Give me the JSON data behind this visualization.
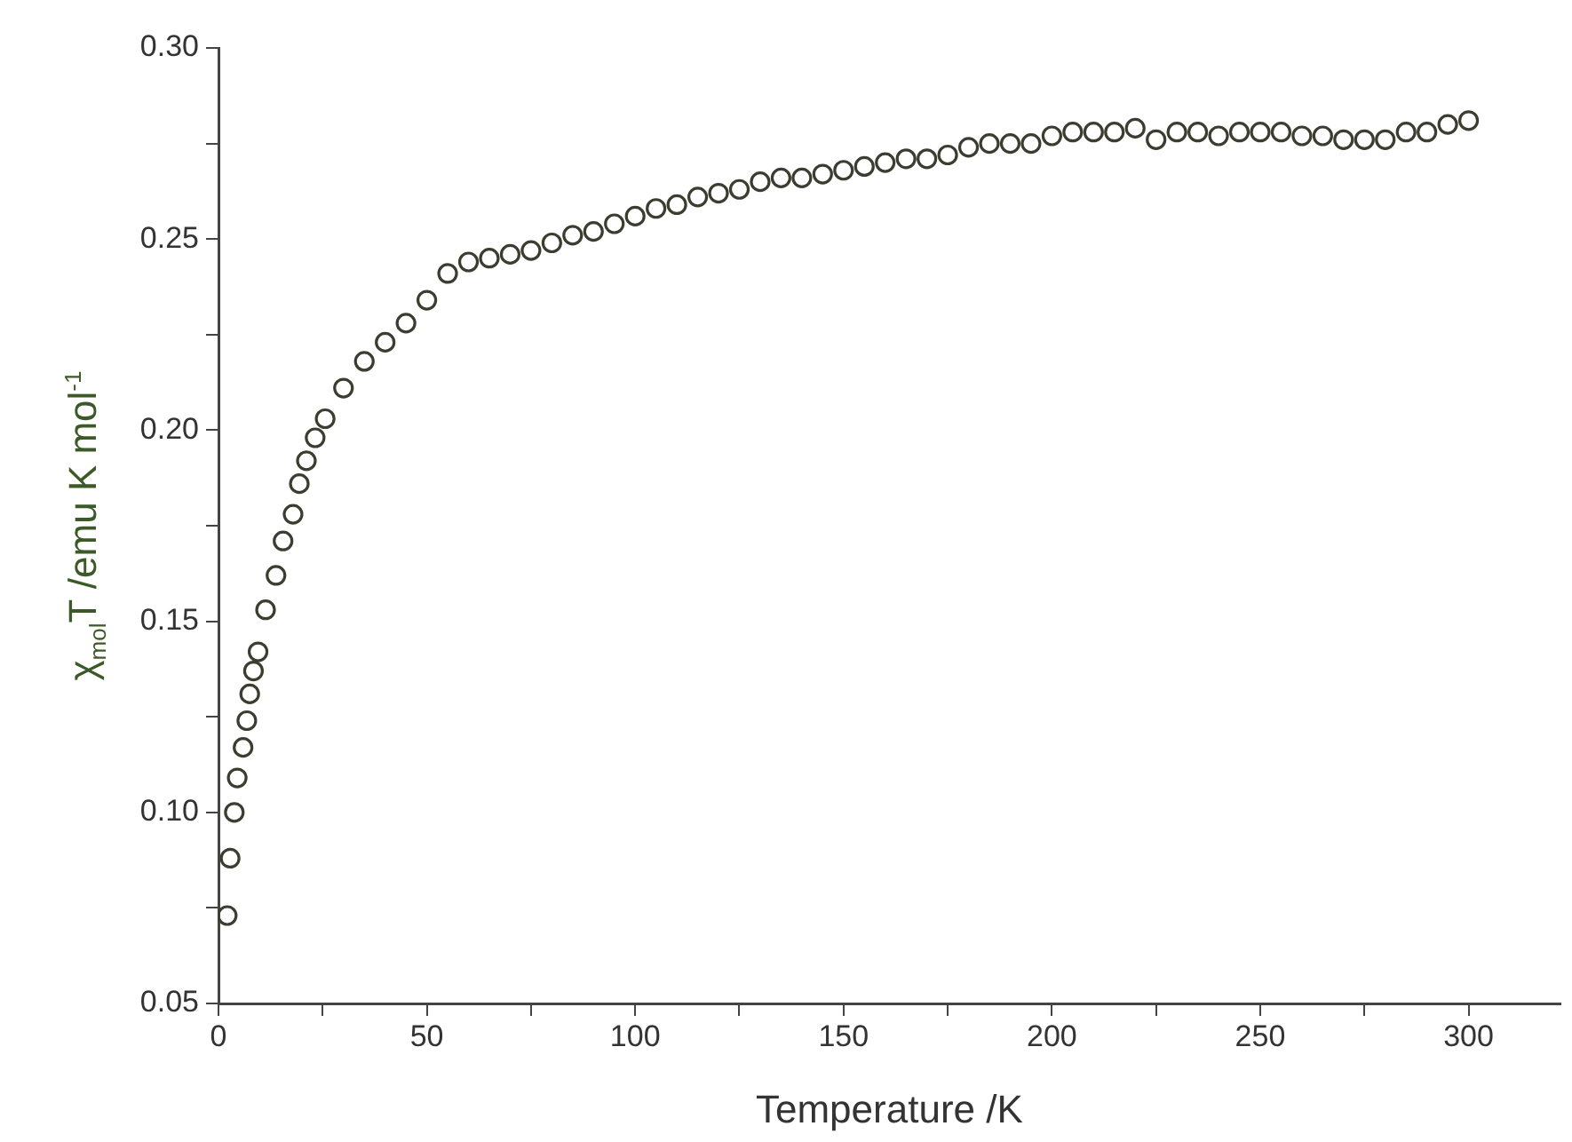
{
  "chart_data": {
    "type": "scatter",
    "xlabel": "Temperature /K",
    "ylabel": "χ$_{mol}$T /emu K mol$^{-1}$",
    "marker": "circle",
    "color": "#3c3c30",
    "x": [
      2.1,
      2.8,
      3.8,
      4.5,
      5.9,
      6.8,
      7.5,
      8.4,
      9.5,
      11.3,
      13.8,
      15.5,
      17.9,
      19.4,
      21.1,
      23.2,
      25.6,
      30,
      35,
      40,
      45,
      50,
      55,
      60,
      65,
      70,
      75,
      80,
      85,
      90,
      95,
      100,
      105,
      110,
      115,
      120,
      125,
      130,
      135,
      140,
      145,
      150,
      155,
      160,
      165,
      170,
      175,
      180,
      185,
      190,
      195,
      200,
      205,
      210,
      215,
      220,
      225,
      230,
      235,
      240,
      245,
      250,
      255,
      260,
      265,
      270,
      275,
      280,
      285,
      290,
      295,
      300
    ],
    "values": [
      0.073,
      0.088,
      0.1,
      0.109,
      0.117,
      0.124,
      0.131,
      0.137,
      0.142,
      0.153,
      0.162,
      0.171,
      0.178,
      0.186,
      0.192,
      0.198,
      0.203,
      0.211,
      0.218,
      0.223,
      0.228,
      0.234,
      0.241,
      0.244,
      0.245,
      0.246,
      0.247,
      0.249,
      0.251,
      0.252,
      0.254,
      0.256,
      0.258,
      0.259,
      0.261,
      0.262,
      0.263,
      0.265,
      0.266,
      0.266,
      0.267,
      0.268,
      0.269,
      0.27,
      0.271,
      0.271,
      0.272,
      0.274,
      0.275,
      0.275,
      0.275,
      0.277,
      0.278,
      0.278,
      0.278,
      0.279,
      0.276,
      0.278,
      0.278,
      0.277,
      0.278,
      0.278,
      0.278,
      0.277,
      0.277,
      0.276,
      0.276,
      0.276,
      0.278,
      0.278,
      0.28,
      0.281
    ],
    "xlim": [
      0,
      322
    ],
    "xticks": [
      0,
      {
        "value": 25,
        "label": null
      },
      50,
      {
        "value": 75,
        "label": null
      },
      100,
      {
        "value": 125,
        "label": null
      },
      150,
      {
        "value": 175,
        "label": null
      },
      200,
      {
        "value": 225,
        "label": null
      },
      250,
      {
        "value": 275,
        "label": null
      },
      300
    ],
    "ylim": [
      0.05,
      0.3
    ],
    "yticks": [
      {
        "value": 0.05,
        "label": "0.05"
      },
      {
        "value": 0.075,
        "label": null
      },
      {
        "value": 0.1,
        "label": "0.10"
      },
      {
        "value": 0.125,
        "label": null
      },
      {
        "value": 0.15,
        "label": "0.15"
      },
      {
        "value": 0.175,
        "label": null
      },
      {
        "value": 0.2,
        "label": "0.20"
      },
      {
        "value": 0.225,
        "label": null
      },
      {
        "value": 0.25,
        "label": "0.25"
      },
      {
        "value": 0.275,
        "label": null
      },
      {
        "value": 0.3,
        "label": "0.30"
      }
    ]
  }
}
